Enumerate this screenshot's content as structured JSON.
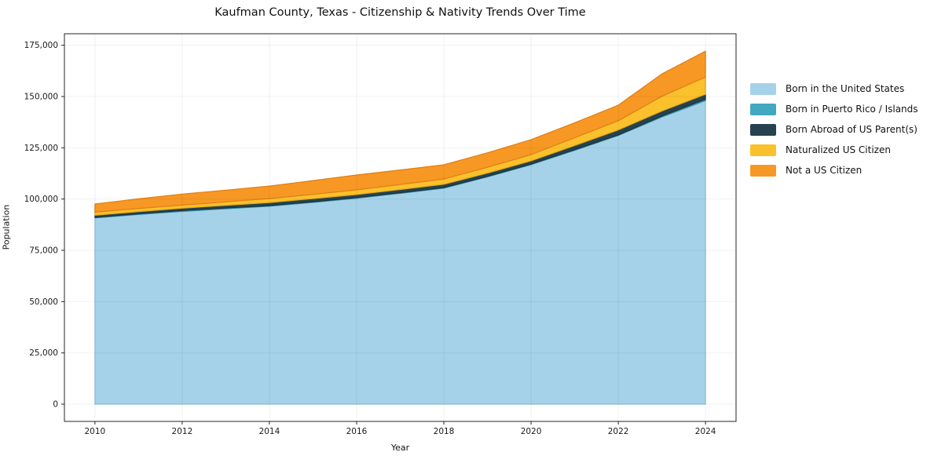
{
  "title": "Kaufman County, Texas - Citizenship & Nativity Trends Over Time",
  "chart_data": {
    "type": "area",
    "stacked": true,
    "title": "Kaufman County, Texas - Citizenship & Nativity Trends Over Time",
    "xlabel": "Year",
    "ylabel": "Population",
    "x": [
      2010,
      2011,
      2012,
      2013,
      2014,
      2015,
      2016,
      2017,
      2018,
      2019,
      2020,
      2021,
      2022,
      2023,
      2024
    ],
    "series": [
      {
        "name": "Born in the United States",
        "color": "#a5d2e8",
        "edge": "#8fc4dd",
        "values": [
          90800,
          92500,
          94000,
          95300,
          96500,
          98400,
          100400,
          102800,
          105300,
          110800,
          116800,
          123800,
          131000,
          140000,
          148000
        ]
      },
      {
        "name": "Born in Puerto Rico / Islands",
        "color": "#41a8c0",
        "edge": "#2f8ba3",
        "values": [
          300,
          350,
          400,
          350,
          300,
          300,
          300,
          300,
          300,
          300,
          300,
          300,
          300,
          500,
          700
        ]
      },
      {
        "name": "Born Abroad of US Parent(s)",
        "color": "#27424f",
        "edge": "#1c333f",
        "values": [
          1000,
          1050,
          1150,
          1300,
          1500,
          1500,
          1500,
          1550,
          1600,
          1570,
          1550,
          2000,
          2400,
          2400,
          2400
        ]
      },
      {
        "name": "Naturalized US Citizen",
        "color": "#fbc12c",
        "edge": "#e3a816",
        "values": [
          1500,
          1500,
          1500,
          1700,
          1950,
          2100,
          2300,
          2450,
          2600,
          2800,
          3050,
          3800,
          4500,
          7200,
          8400
        ]
      },
      {
        "name": "Not a US Citizen",
        "color": "#f79824",
        "edge": "#df7f16",
        "values": [
          4000,
          4700,
          5400,
          5700,
          6100,
          6700,
          7250,
          7100,
          6900,
          7100,
          7300,
          7300,
          7600,
          10900,
          12600
        ]
      }
    ],
    "x_ticks": [
      2010,
      2012,
      2014,
      2016,
      2018,
      2020,
      2022,
      2024
    ],
    "x_tick_labels": [
      "2010",
      "2012",
      "2014",
      "2016",
      "2018",
      "2020",
      "2022",
      "2024"
    ],
    "y_ticks": [
      0,
      25000,
      50000,
      75000,
      100000,
      125000,
      150000,
      175000
    ],
    "y_tick_labels": [
      "0",
      "25,000",
      "50,000",
      "75,000",
      "100,000",
      "125,000",
      "150,000",
      "175,000"
    ],
    "xlim": [
      2009.3,
      2024.7
    ],
    "ylim": [
      -8400,
      180600
    ],
    "grid": true,
    "legend_position": "right-outside"
  }
}
